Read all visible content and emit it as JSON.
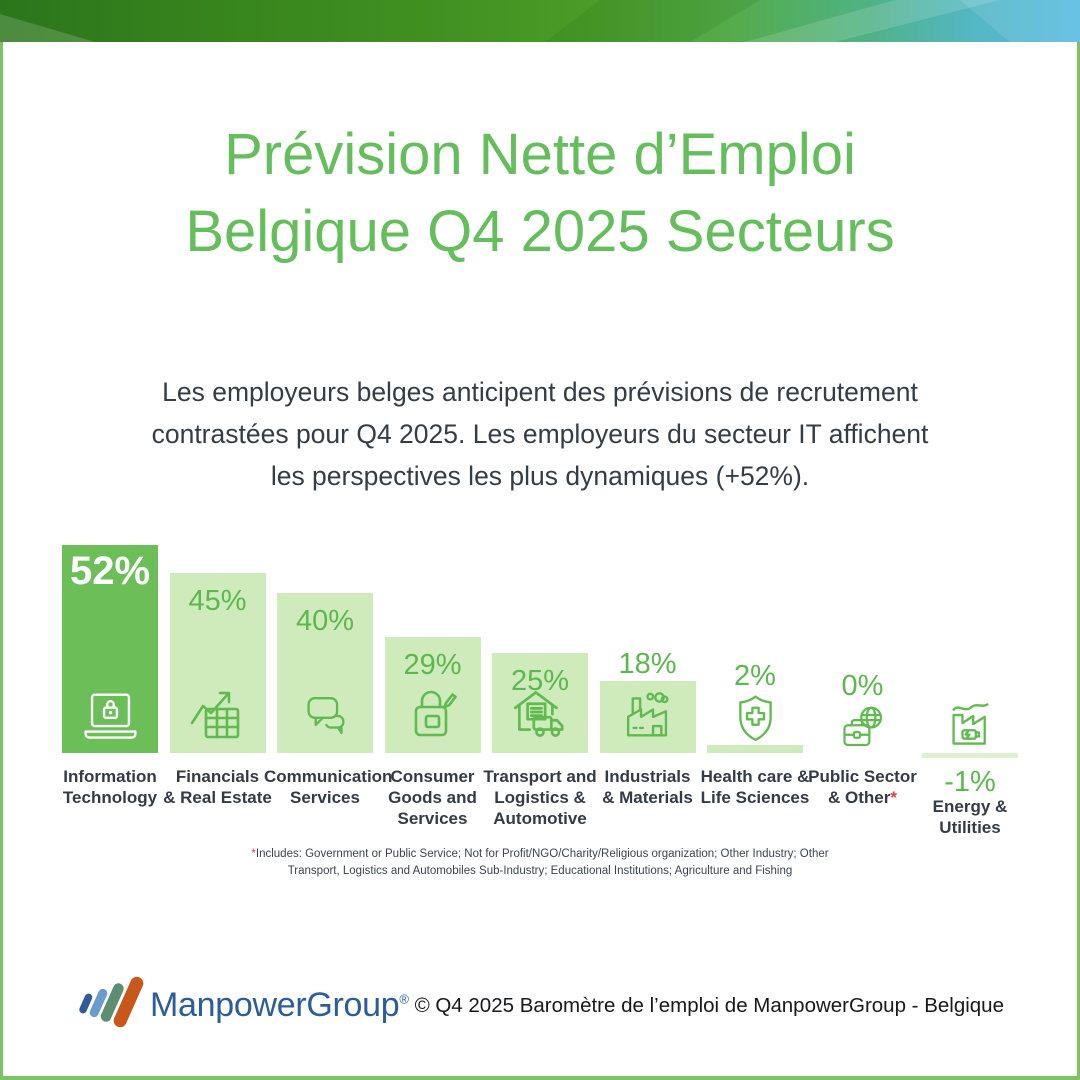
{
  "page": {
    "title_lines": [
      "Prévision Nette d’Emploi",
      "Belgique Q4 2025 Secteurs"
    ],
    "subtitle_lines": [
      "Les employeurs belges anticipent des prévisions de recrutement",
      "contrastées pour Q4 2025. Les employeurs du secteur IT affichent",
      "les perspectives les plus dynamiques (+52%)."
    ],
    "accent_green": "#64BE5B",
    "text_dark": "#333D47"
  },
  "chart_data": {
    "type": "bar",
    "title": "Prévision Nette d’Emploi Belgique Q4 2025 Secteurs",
    "unit": "%",
    "ylim": [
      -1,
      52
    ],
    "grid": false,
    "categories": [
      "Information Technology",
      "Financials & Real Estate",
      "Communication Services",
      "Consumer Goods and Services",
      "Transport and Logistics & Automotive",
      "Industrials & Materials",
      "Health care & Life Sciences",
      "Public Sector & Other*",
      "Energy & Utilities"
    ],
    "values": [
      52,
      45,
      40,
      29,
      25,
      18,
      2,
      0,
      -1
    ],
    "sectors": [
      {
        "label_lines": [
          "Information",
          "Technology"
        ],
        "value": 52,
        "display": "52%",
        "icon": "laptop-lock-icon",
        "highlight": true
      },
      {
        "label_lines": [
          "Financials",
          "& Real Estate"
        ],
        "value": 45,
        "display": "45%",
        "icon": "growth-chart-icon"
      },
      {
        "label_lines": [
          "Communication",
          "Services"
        ],
        "value": 40,
        "display": "40%",
        "icon": "speech-bubbles-icon"
      },
      {
        "label_lines": [
          "Consumer",
          "Goods and",
          "Services"
        ],
        "value": 29,
        "display": "29%",
        "icon": "shopping-bag-icon"
      },
      {
        "label_lines": [
          "Transport and",
          "Logistics &",
          "Automotive"
        ],
        "value": 25,
        "display": "25%",
        "icon": "warehouse-truck-icon"
      },
      {
        "label_lines": [
          "Industrials",
          "& Materials"
        ],
        "value": 18,
        "display": "18%",
        "icon": "factory-icon"
      },
      {
        "label_lines": [
          "Health care &",
          "Life Sciences"
        ],
        "value": 2,
        "display": "2%",
        "icon": "shield-cross-icon"
      },
      {
        "label_lines": [
          "Public Sector",
          "& Other"
        ],
        "value": 0,
        "display": "0%",
        "icon": "briefcase-globe-icon",
        "asterisk": true
      },
      {
        "label_lines": [
          "Energy &",
          "Utilities"
        ],
        "value": -1,
        "display": "-1%",
        "icon": "energy-factory-icon"
      }
    ],
    "colors": {
      "highlight_bar": "#6CBE58",
      "bar": "#CFEBBC",
      "negative_bar": "#DDF2CC",
      "value_text": "#5CB84E",
      "icon_stroke": "#5FBA4F",
      "label_text": "#333B46",
      "frame": "#7CC364"
    }
  },
  "footnote": {
    "asterisk": "*",
    "asterisk_color": "#E03C3C",
    "lines": [
      "Includes: Government or Public Service; Not for Profit/NGO/Charity/Religious organization; Other Industry; Other",
      "Transport, Logistics and Automobiles Sub-Industry; Educational Institutions; Agriculture and Fishing"
    ]
  },
  "footer": {
    "brand": "ManpowerGroup",
    "registered": "®",
    "copyright": "© Q4 2025 Baromètre de l’emploi de ManpowerGroup - Belgique",
    "brand_color": "#2B5C9D",
    "logo_bar_colors": [
      "#2F5C99",
      "#699BCD",
      "#5F8D72",
      "#C8571B"
    ]
  }
}
